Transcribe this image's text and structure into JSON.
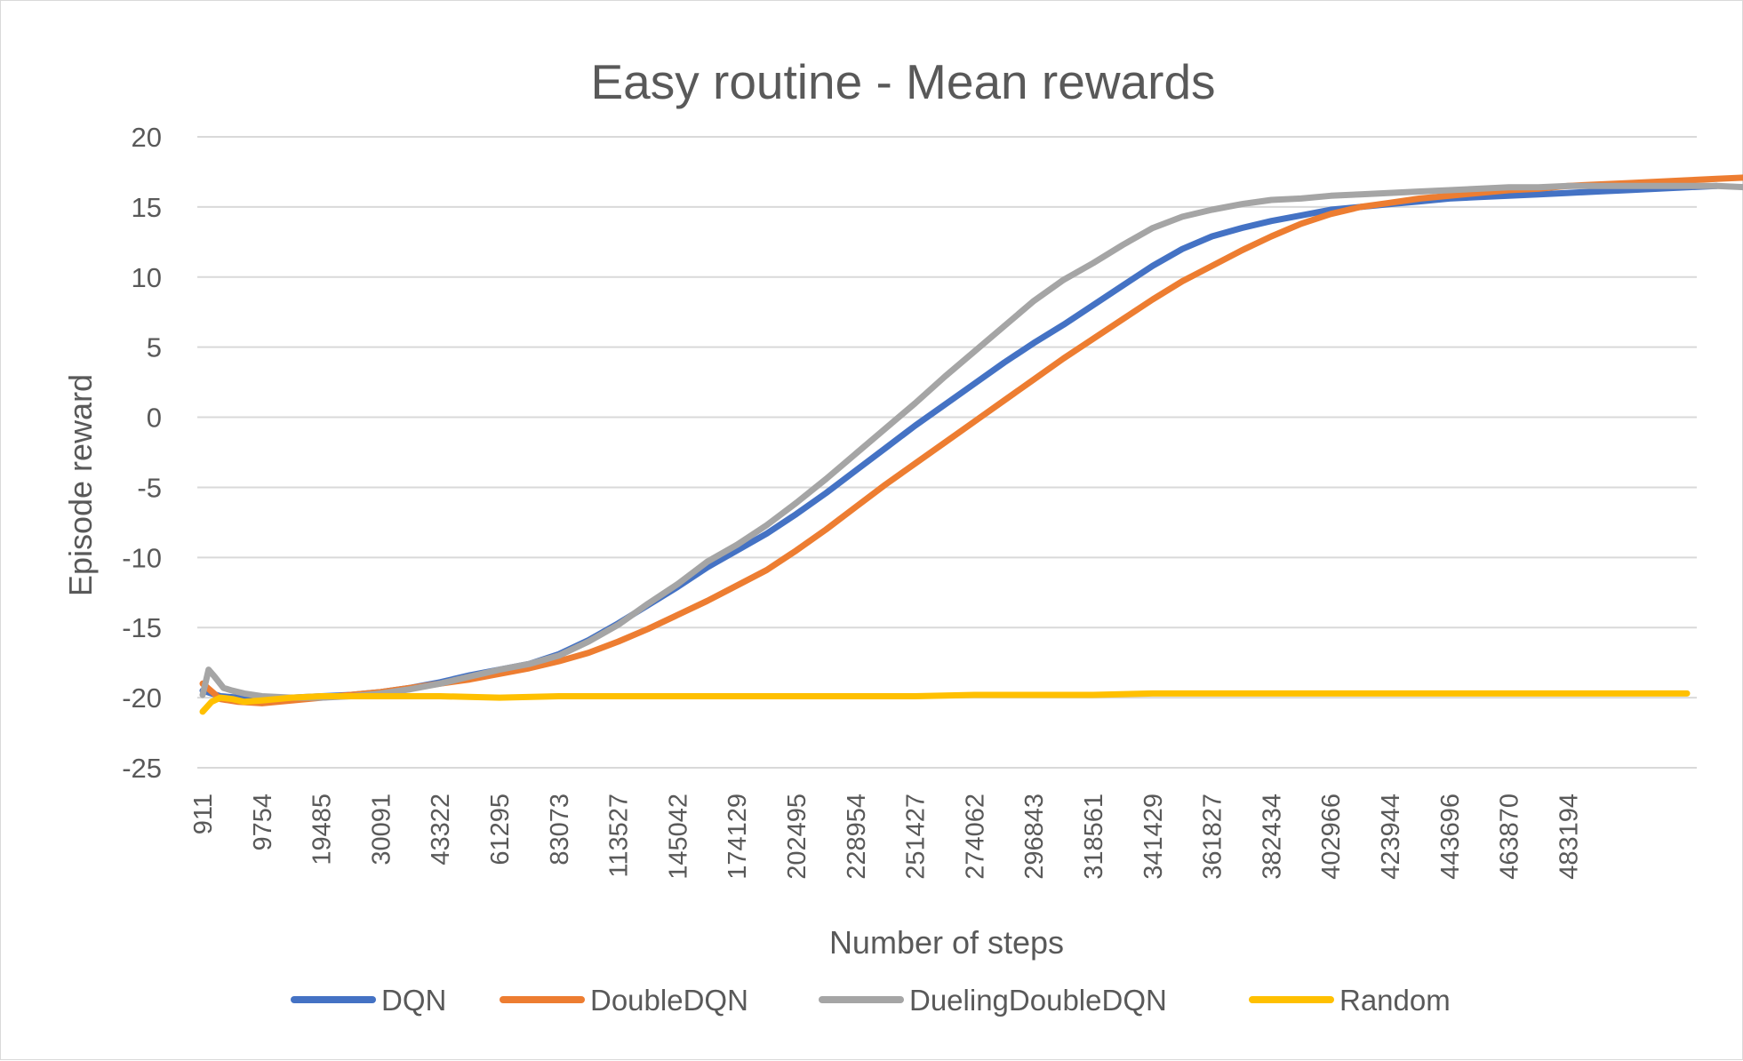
{
  "chart_data": {
    "type": "line",
    "title": "Easy routine - Mean rewards",
    "xlabel": "Number of steps",
    "ylabel": "Episode reward",
    "ylim": [
      -25,
      20
    ],
    "yticks": [
      20,
      15,
      10,
      5,
      0,
      -5,
      -10,
      -15,
      -20,
      -25
    ],
    "x_tick_labels": [
      "911",
      "9754",
      "19485",
      "30091",
      "43322",
      "61295",
      "83073",
      "113527",
      "145042",
      "174129",
      "202495",
      "228954",
      "251427",
      "274062",
      "296843",
      "318561",
      "341429",
      "361827",
      "382434",
      "402966",
      "423944",
      "443696",
      "463870",
      "483194"
    ],
    "grid": "horizontal",
    "legend_position": "bottom",
    "x_axis_note": "category axis: x values are positions along the axis where tick i sits at position i",
    "series": [
      {
        "name": "DQN",
        "color": "#4472C4",
        "x": [
          0,
          0.3,
          0.6,
          1,
          1.5,
          2,
          2.5,
          3,
          3.5,
          4,
          4.5,
          5,
          5.5,
          6,
          6.5,
          7,
          7.5,
          8,
          8.5,
          9,
          9.5,
          10,
          10.5,
          11,
          11.5,
          12,
          12.5,
          13,
          13.5,
          14,
          14.5,
          15,
          15.5,
          16,
          16.5,
          17,
          17.5,
          18,
          18.5,
          19,
          19.5,
          20,
          20.5,
          21,
          21.5,
          22,
          22.5,
          23,
          23.5,
          24,
          24.5,
          25,
          25.5
        ],
        "values": [
          -19.5,
          -19.9,
          -20.0,
          -20.0,
          -20.0,
          -19.9,
          -19.8,
          -19.6,
          -19.3,
          -18.9,
          -18.4,
          -18.0,
          -17.6,
          -16.9,
          -15.9,
          -14.7,
          -13.4,
          -12.1,
          -10.7,
          -9.5,
          -8.3,
          -6.9,
          -5.4,
          -3.8,
          -2.2,
          -0.6,
          0.9,
          2.4,
          3.9,
          5.3,
          6.6,
          8.0,
          9.4,
          10.8,
          12.0,
          12.9,
          13.5,
          14.0,
          14.4,
          14.8,
          15.0,
          15.2,
          15.4,
          15.6,
          15.7,
          15.8,
          15.9,
          16.0,
          16.1,
          16.2,
          16.3,
          16.4,
          16.5
        ]
      },
      {
        "name": "DoubleDQN",
        "color": "#ED7D31",
        "x": [
          0,
          0.3,
          0.6,
          1,
          1.5,
          2,
          2.5,
          3,
          3.5,
          4,
          4.5,
          5,
          5.5,
          6,
          6.5,
          7,
          7.5,
          8,
          8.5,
          9,
          9.5,
          10,
          10.5,
          11,
          11.5,
          12,
          12.5,
          13,
          13.5,
          14,
          14.5,
          15,
          15.5,
          16,
          16.5,
          17,
          17.5,
          18,
          18.5,
          19,
          19.5,
          20,
          20.5,
          21,
          21.5,
          22,
          22.5,
          23,
          23.5,
          24,
          24.5,
          25,
          25.5,
          26,
          26.5
        ],
        "values": [
          -19.0,
          -20.1,
          -20.3,
          -20.4,
          -20.2,
          -20.0,
          -19.8,
          -19.6,
          -19.3,
          -19.0,
          -18.7,
          -18.3,
          -17.9,
          -17.4,
          -16.8,
          -16.0,
          -15.1,
          -14.1,
          -13.1,
          -12.0,
          -10.9,
          -9.5,
          -8.0,
          -6.4,
          -4.8,
          -3.3,
          -1.8,
          -0.3,
          1.2,
          2.7,
          4.2,
          5.6,
          7.0,
          8.4,
          9.7,
          10.8,
          11.9,
          12.9,
          13.8,
          14.5,
          15.0,
          15.3,
          15.6,
          15.8,
          16.0,
          16.2,
          16.3,
          16.5,
          16.6,
          16.7,
          16.8,
          16.9,
          17.0,
          17.1,
          17.2
        ]
      },
      {
        "name": "DuelingDoubleDQN",
        "color": "#A5A5A5",
        "x": [
          0,
          0.1,
          0.2,
          0.35,
          0.5,
          0.7,
          1,
          1.5,
          2,
          2.5,
          3,
          3.5,
          4,
          4.5,
          5,
          5.5,
          6,
          6.5,
          7,
          7.5,
          8,
          8.5,
          9,
          9.5,
          10,
          10.5,
          11,
          11.5,
          12,
          12.5,
          13,
          13.5,
          14,
          14.5,
          15,
          15.5,
          16,
          16.5,
          17,
          17.5,
          18,
          18.5,
          19,
          19.5,
          20,
          20.5,
          21,
          21.5,
          22,
          22.5,
          23,
          23.5,
          24,
          24.5,
          25,
          25.5,
          26
        ],
        "values": [
          -19.8,
          -18.0,
          -18.5,
          -19.3,
          -19.5,
          -19.7,
          -19.9,
          -20.0,
          -20.0,
          -19.9,
          -19.7,
          -19.4,
          -19.0,
          -18.5,
          -18.0,
          -17.6,
          -17.0,
          -16.0,
          -14.8,
          -13.3,
          -11.9,
          -10.3,
          -9.1,
          -7.7,
          -6.1,
          -4.4,
          -2.6,
          -0.8,
          1.0,
          2.9,
          4.7,
          6.5,
          8.3,
          9.8,
          11.0,
          12.3,
          13.5,
          14.3,
          14.8,
          15.2,
          15.5,
          15.6,
          15.8,
          15.9,
          16.0,
          16.1,
          16.2,
          16.3,
          16.4,
          16.4,
          16.5,
          16.5,
          16.5,
          16.5,
          16.5,
          16.5,
          16.4
        ]
      },
      {
        "name": "Random",
        "color": "#FFC000",
        "x": [
          0,
          0.15,
          0.3,
          0.5,
          0.7,
          1,
          1.5,
          2,
          3,
          4,
          5,
          6,
          7,
          8,
          9,
          10,
          11,
          12,
          13,
          14,
          15,
          16,
          17,
          18,
          19,
          20,
          21,
          22,
          23,
          24,
          25
        ],
        "values": [
          -21.0,
          -20.3,
          -20.0,
          -20.1,
          -20.3,
          -20.2,
          -20.0,
          -19.9,
          -19.9,
          -19.9,
          -20.0,
          -19.9,
          -19.9,
          -19.9,
          -19.9,
          -19.9,
          -19.9,
          -19.9,
          -19.8,
          -19.8,
          -19.8,
          -19.7,
          -19.7,
          -19.7,
          -19.7,
          -19.7,
          -19.7,
          -19.7,
          -19.7,
          -19.7,
          -19.7
        ]
      }
    ]
  }
}
